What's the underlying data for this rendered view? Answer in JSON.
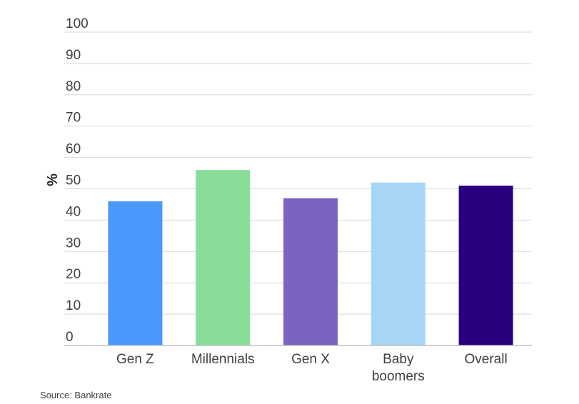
{
  "chart_data": {
    "type": "bar",
    "categories": [
      "Gen Z",
      "Millennials",
      "Gen X",
      "Baby boomers",
      "Overall"
    ],
    "category_lines": [
      [
        "Gen Z"
      ],
      [
        "Millennials"
      ],
      [
        "Gen X"
      ],
      [
        "Baby",
        "boomers"
      ],
      [
        "Overall"
      ]
    ],
    "values": [
      46,
      56,
      47,
      52,
      51
    ],
    "colors": [
      "#4a98fb",
      "#89dd98",
      "#7b64c0",
      "#a6d5f5",
      "#2a007f"
    ],
    "ylabel": "%",
    "ylim": [
      0,
      100
    ],
    "yticks": [
      0,
      10,
      20,
      30,
      40,
      50,
      60,
      70,
      80,
      90,
      100
    ],
    "grid": true
  },
  "source": "Source: Bankrate"
}
